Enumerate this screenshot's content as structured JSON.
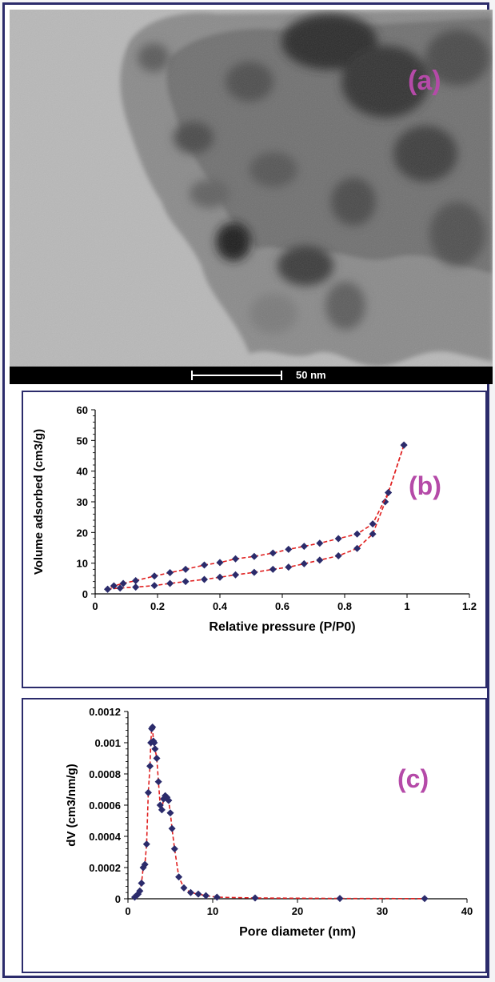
{
  "panel_a": {
    "label": "(a)",
    "scale_bar_label": "50 nm"
  },
  "chart_data": [
    {
      "type": "line",
      "panel_label": "(b)",
      "xlabel": "Relative pressure (P/P0)",
      "ylabel": "Volume adsorbed (cm3/g)",
      "xlim": [
        0,
        1.2
      ],
      "ylim": [
        0,
        60
      ],
      "xticks": [
        "0",
        "0.2",
        "0.4",
        "0.6",
        "0.8",
        "1",
        "1.2"
      ],
      "yticks": [
        "0",
        "10",
        "20",
        "30",
        "40",
        "50",
        "60"
      ],
      "grid": false,
      "marker_color": "#2b2b6b",
      "line_color": "#e02020",
      "series": [
        {
          "x": [
            0.04,
            0.08,
            0.13,
            0.19,
            0.24,
            0.29,
            0.35,
            0.4,
            0.45,
            0.51,
            0.57,
            0.62,
            0.67,
            0.72,
            0.78,
            0.84,
            0.89,
            0.93,
            0.94,
            0.99
          ],
          "y": [
            1.5,
            1.9,
            2.2,
            2.7,
            3.4,
            4.0,
            4.7,
            5.4,
            6.2,
            7.0,
            8.0,
            8.7,
            9.8,
            11.0,
            12.4,
            14.8,
            19.5,
            30.0,
            33.0,
            48.5
          ]
        },
        {
          "x": [
            0.99,
            0.94,
            0.89,
            0.84,
            0.78,
            0.72,
            0.67,
            0.62,
            0.57,
            0.51,
            0.45,
            0.4,
            0.35,
            0.29,
            0.24,
            0.19,
            0.13,
            0.09,
            0.06,
            0.04
          ],
          "y": [
            48.5,
            33.0,
            22.8,
            19.5,
            18.0,
            16.5,
            15.5,
            14.5,
            13.3,
            12.2,
            11.4,
            10.2,
            9.4,
            8.0,
            6.9,
            5.8,
            4.3,
            3.4,
            2.6,
            1.5
          ]
        }
      ]
    },
    {
      "type": "line",
      "panel_label": "(c)",
      "xlabel": "Pore diameter (nm)",
      "ylabel": "dV (cm3/nm/g)",
      "xlim": [
        0,
        40
      ],
      "ylim": [
        0,
        0.0012
      ],
      "xticks": [
        "0",
        "10",
        "20",
        "30",
        "40"
      ],
      "yticks": [
        "0",
        "0.0002",
        "0.0004",
        "0.0006",
        "0.0008",
        "0.001",
        "0.0012"
      ],
      "grid": false,
      "marker_color": "#2b2b6b",
      "line_color": "#e02020",
      "series": [
        {
          "x": [
            0.8,
            1.0,
            1.2,
            1.4,
            1.6,
            1.8,
            2.0,
            2.2,
            2.4,
            2.6,
            2.7,
            2.8,
            2.9,
            3.0,
            3.1,
            3.2,
            3.4,
            3.6,
            3.8,
            4.0,
            4.2,
            4.4,
            4.6,
            4.8,
            5.0,
            5.2,
            5.5,
            6.0,
            6.6,
            7.4,
            8.3,
            9.2,
            10.5,
            15.0,
            25.0,
            35.0
          ],
          "y": [
            1e-05,
            2e-05,
            3e-05,
            5e-05,
            0.0001,
            0.0002,
            0.00022,
            0.00035,
            0.00068,
            0.00085,
            0.001,
            0.00109,
            0.0011,
            0.00101,
            0.001,
            0.00096,
            0.0009,
            0.00075,
            0.0006,
            0.00057,
            0.00064,
            0.00066,
            0.00065,
            0.00063,
            0.00055,
            0.00045,
            0.00032,
            0.00014,
            7e-05,
            4e-05,
            3e-05,
            2e-05,
            1e-05,
            5e-06,
            2e-06,
            1e-06
          ]
        }
      ]
    }
  ]
}
